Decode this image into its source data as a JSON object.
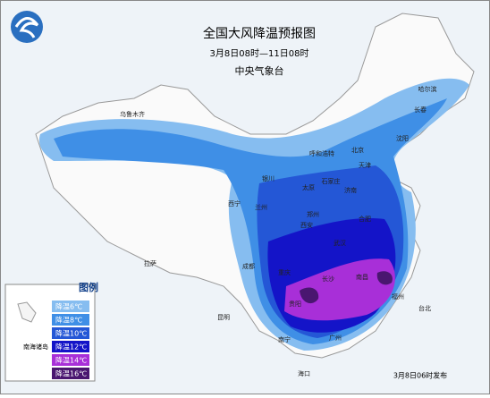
{
  "header": {
    "title": "全国大风降温预报图",
    "period": "3月8日08时—11日08时",
    "issuer": "中央气象台"
  },
  "legend": {
    "title": "图例",
    "inset_label": "南海诸岛",
    "items": [
      {
        "label": "降温6℃",
        "color": "#86bdf0"
      },
      {
        "label": "降温8℃",
        "color": "#3f8fe6"
      },
      {
        "label": "降温10℃",
        "color": "#2457d6"
      },
      {
        "label": "降温12℃",
        "color": "#1414c8"
      },
      {
        "label": "降温14℃",
        "color": "#a82fd8"
      },
      {
        "label": "降温16℃",
        "color": "#4a1670"
      }
    ]
  },
  "cities": [
    "乌鲁木齐",
    "哈尔滨",
    "长春",
    "沈阳",
    "呼和浩特",
    "北京",
    "天津",
    "石家庄",
    "太原",
    "济南",
    "银川",
    "兰州",
    "西宁",
    "郑州",
    "西安",
    "合肥",
    "武汉",
    "成都",
    "重庆",
    "长沙",
    "南昌",
    "贵阳",
    "福州",
    "拉萨",
    "昆明",
    "南宁",
    "广州",
    "台北",
    "海口"
  ],
  "footer": "3月8日06时发布"
}
